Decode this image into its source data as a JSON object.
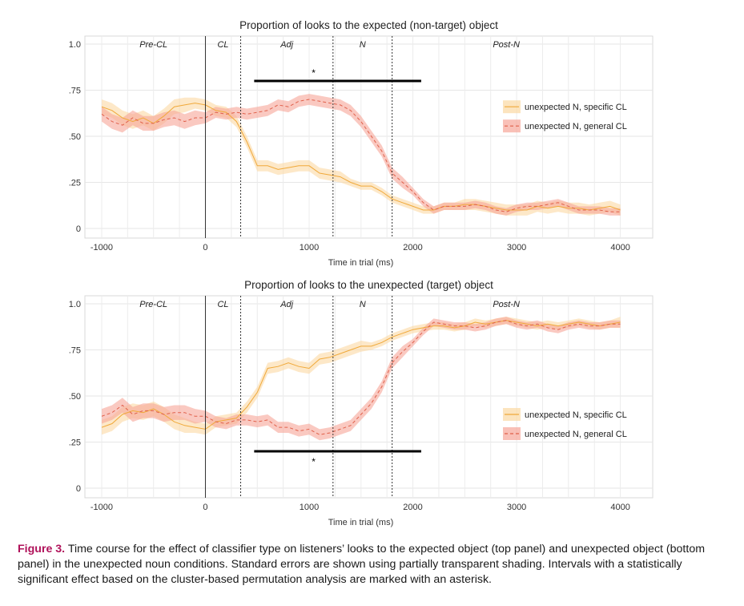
{
  "caption": {
    "label": "Figure 3.",
    "text": " Time course for the effect of classifier type on listeners’ looks to the expected object (top panel) and unexpected object (bottom panel) in the unexpected noun conditions. Standard errors are shown using partially transparent shading. Intervals with a statistically significant effect based on the cluster-based permutation analysis are marked with an asterisk."
  },
  "colors": {
    "specific": "#f0a93a",
    "specific_band": "#fbd8a3",
    "general": "#e0604a",
    "general_band": "#f6a598"
  },
  "chart_data": [
    {
      "type": "line",
      "title": "Proportion of looks to the expected (non-target) object",
      "xlabel": "Time in trial (ms)",
      "ylabel": "",
      "xlim": [
        -1100,
        4250
      ],
      "ylim": [
        0,
        1.0
      ],
      "xticks": [
        -1000,
        0,
        1000,
        2000,
        3000,
        4000
      ],
      "xtick_labels": [
        "-1000",
        "0",
        "1000",
        "2000",
        "3000",
        "4000"
      ],
      "yticks": [
        0,
        0.25,
        0.5,
        0.75,
        1.0
      ],
      "ytick_labels": [
        "0",
        ".25",
        ".50",
        ".75",
        "1.0"
      ],
      "grid": true,
      "regions": [
        "Pre-CL",
        "CL",
        "Adj",
        "N",
        "Post-N"
      ],
      "boundaries": [
        0,
        340,
        1230,
        1800
      ],
      "significance": {
        "start": 470,
        "end": 2080,
        "y": 0.8,
        "marker": "*",
        "marker_position": "above"
      },
      "legend_position": "right",
      "x": [
        -1000,
        -900,
        -800,
        -700,
        -600,
        -500,
        -400,
        -300,
        -200,
        -100,
        0,
        100,
        200,
        300,
        400,
        500,
        600,
        700,
        800,
        900,
        1000,
        1100,
        1200,
        1300,
        1400,
        1500,
        1600,
        1700,
        1800,
        1900,
        2000,
        2100,
        2200,
        2300,
        2400,
        2500,
        2600,
        2700,
        2800,
        2900,
        3000,
        3100,
        3200,
        3300,
        3400,
        3500,
        3600,
        3700,
        3800,
        3900,
        4000
      ],
      "series": [
        {
          "name": "unexpected N, specific CL",
          "style": "solid",
          "values": [
            0.66,
            0.64,
            0.6,
            0.58,
            0.6,
            0.57,
            0.61,
            0.66,
            0.67,
            0.68,
            0.67,
            0.64,
            0.63,
            0.58,
            0.47,
            0.34,
            0.34,
            0.32,
            0.33,
            0.34,
            0.34,
            0.3,
            0.29,
            0.28,
            0.25,
            0.23,
            0.23,
            0.2,
            0.16,
            0.14,
            0.12,
            0.1,
            0.1,
            0.12,
            0.12,
            0.13,
            0.13,
            0.12,
            0.11,
            0.1,
            0.1,
            0.1,
            0.12,
            0.11,
            0.12,
            0.11,
            0.11,
            0.1,
            0.11,
            0.12,
            0.1
          ],
          "se": [
            0.04,
            0.04,
            0.04,
            0.04,
            0.04,
            0.04,
            0.04,
            0.04,
            0.04,
            0.03,
            0.03,
            0.03,
            0.03,
            0.03,
            0.03,
            0.03,
            0.03,
            0.03,
            0.03,
            0.03,
            0.03,
            0.03,
            0.03,
            0.03,
            0.02,
            0.02,
            0.02,
            0.02,
            0.02,
            0.02,
            0.02,
            0.02,
            0.02,
            0.02,
            0.02,
            0.03,
            0.03,
            0.03,
            0.03,
            0.03,
            0.03,
            0.03,
            0.03,
            0.03,
            0.03,
            0.03,
            0.03,
            0.03,
            0.03,
            0.03,
            0.03
          ]
        },
        {
          "name": "unexpected N, general CL",
          "style": "dashed",
          "values": [
            0.62,
            0.58,
            0.56,
            0.6,
            0.57,
            0.57,
            0.59,
            0.6,
            0.58,
            0.6,
            0.6,
            0.63,
            0.62,
            0.63,
            0.62,
            0.63,
            0.64,
            0.67,
            0.66,
            0.69,
            0.7,
            0.69,
            0.68,
            0.67,
            0.64,
            0.58,
            0.5,
            0.42,
            0.3,
            0.25,
            0.2,
            0.14,
            0.1,
            0.12,
            0.12,
            0.12,
            0.13,
            0.12,
            0.1,
            0.09,
            0.11,
            0.12,
            0.12,
            0.13,
            0.14,
            0.12,
            0.1,
            0.1,
            0.1,
            0.09,
            0.09
          ],
          "se": [
            0.04,
            0.04,
            0.04,
            0.04,
            0.04,
            0.04,
            0.04,
            0.04,
            0.04,
            0.04,
            0.03,
            0.03,
            0.03,
            0.03,
            0.03,
            0.03,
            0.03,
            0.03,
            0.03,
            0.03,
            0.03,
            0.03,
            0.03,
            0.03,
            0.03,
            0.03,
            0.03,
            0.03,
            0.03,
            0.03,
            0.02,
            0.02,
            0.02,
            0.02,
            0.02,
            0.02,
            0.02,
            0.02,
            0.02,
            0.02,
            0.02,
            0.02,
            0.02,
            0.02,
            0.02,
            0.02,
            0.02,
            0.02,
            0.02,
            0.02,
            0.02
          ]
        }
      ]
    },
    {
      "type": "line",
      "title": "Proportion of looks to the unexpected (target) object",
      "xlabel": "Time in trial (ms)",
      "ylabel": "",
      "xlim": [
        -1100,
        4250
      ],
      "ylim": [
        0,
        1.0
      ],
      "xticks": [
        -1000,
        0,
        1000,
        2000,
        3000,
        4000
      ],
      "xtick_labels": [
        "-1000",
        "0",
        "1000",
        "2000",
        "3000",
        "4000"
      ],
      "yticks": [
        0,
        0.25,
        0.5,
        0.75,
        1.0
      ],
      "ytick_labels": [
        "0",
        ".25",
        ".50",
        ".75",
        "1.0"
      ],
      "grid": true,
      "regions": [
        "Pre-CL",
        "CL",
        "Adj",
        "N",
        "Post-N"
      ],
      "boundaries": [
        0,
        340,
        1230,
        1800
      ],
      "significance": {
        "start": 470,
        "end": 2080,
        "y": 0.2,
        "marker": "*",
        "marker_position": "below"
      },
      "legend_position": "right",
      "x": [
        -1000,
        -900,
        -800,
        -700,
        -600,
        -500,
        -400,
        -300,
        -200,
        -100,
        0,
        100,
        200,
        300,
        400,
        500,
        600,
        700,
        800,
        900,
        1000,
        1100,
        1200,
        1300,
        1400,
        1500,
        1600,
        1700,
        1800,
        1900,
        2000,
        2100,
        2200,
        2300,
        2400,
        2500,
        2600,
        2700,
        2800,
        2900,
        3000,
        3100,
        3200,
        3300,
        3400,
        3500,
        3600,
        3700,
        3800,
        3900,
        4000
      ],
      "series": [
        {
          "name": "unexpected N, specific CL",
          "style": "solid",
          "values": [
            0.33,
            0.35,
            0.4,
            0.42,
            0.41,
            0.43,
            0.4,
            0.36,
            0.34,
            0.33,
            0.32,
            0.36,
            0.37,
            0.38,
            0.44,
            0.52,
            0.65,
            0.66,
            0.68,
            0.66,
            0.65,
            0.7,
            0.71,
            0.73,
            0.75,
            0.77,
            0.77,
            0.79,
            0.82,
            0.84,
            0.86,
            0.87,
            0.88,
            0.88,
            0.87,
            0.88,
            0.9,
            0.89,
            0.9,
            0.91,
            0.9,
            0.89,
            0.88,
            0.89,
            0.88,
            0.89,
            0.9,
            0.89,
            0.88,
            0.89,
            0.9
          ],
          "se": [
            0.04,
            0.04,
            0.04,
            0.04,
            0.04,
            0.04,
            0.04,
            0.04,
            0.04,
            0.03,
            0.03,
            0.03,
            0.03,
            0.03,
            0.03,
            0.03,
            0.03,
            0.03,
            0.03,
            0.03,
            0.03,
            0.03,
            0.03,
            0.03,
            0.03,
            0.03,
            0.02,
            0.02,
            0.02,
            0.02,
            0.02,
            0.02,
            0.02,
            0.02,
            0.02,
            0.02,
            0.02,
            0.02,
            0.02,
            0.02,
            0.02,
            0.02,
            0.02,
            0.02,
            0.02,
            0.02,
            0.02,
            0.02,
            0.02,
            0.02,
            0.03
          ]
        },
        {
          "name": "unexpected N, general CL",
          "style": "dashed",
          "values": [
            0.39,
            0.41,
            0.45,
            0.4,
            0.42,
            0.42,
            0.4,
            0.41,
            0.41,
            0.39,
            0.39,
            0.36,
            0.35,
            0.37,
            0.37,
            0.36,
            0.37,
            0.33,
            0.33,
            0.31,
            0.32,
            0.29,
            0.3,
            0.32,
            0.34,
            0.4,
            0.46,
            0.55,
            0.68,
            0.74,
            0.79,
            0.85,
            0.9,
            0.89,
            0.88,
            0.88,
            0.87,
            0.88,
            0.9,
            0.91,
            0.89,
            0.88,
            0.89,
            0.87,
            0.86,
            0.88,
            0.89,
            0.88,
            0.88,
            0.89,
            0.89
          ],
          "se": [
            0.04,
            0.04,
            0.04,
            0.04,
            0.04,
            0.04,
            0.04,
            0.04,
            0.04,
            0.04,
            0.03,
            0.03,
            0.03,
            0.03,
            0.03,
            0.03,
            0.03,
            0.03,
            0.03,
            0.03,
            0.03,
            0.03,
            0.03,
            0.03,
            0.03,
            0.03,
            0.03,
            0.03,
            0.03,
            0.03,
            0.02,
            0.02,
            0.02,
            0.02,
            0.02,
            0.02,
            0.02,
            0.02,
            0.02,
            0.02,
            0.02,
            0.02,
            0.02,
            0.02,
            0.02,
            0.02,
            0.02,
            0.02,
            0.02,
            0.02,
            0.02
          ]
        }
      ]
    }
  ]
}
